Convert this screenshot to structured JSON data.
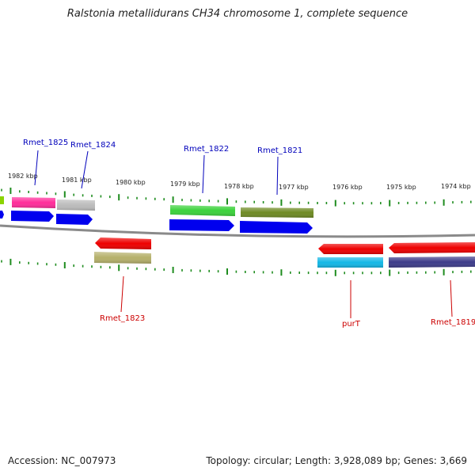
{
  "title": "Ralstonia metallidurans CH34 chromosome 1, complete sequence",
  "footer": {
    "accession": "Accession: NC_007973",
    "summary": "Topology: circular; Length: 3,928,089 bp; Genes: 3,669"
  },
  "colors": {
    "forward_label": "#0000bb",
    "reverse_label": "#cc0000",
    "tick": "#1e8c1e",
    "backbone": "#8a8a8a"
  },
  "kbp_labels": [
    "1982 kbp",
    "1981 kbp",
    "1980 kbp",
    "1979 kbp",
    "1978 kbp",
    "1977 kbp",
    "1976 kbp",
    "1975 kbp",
    "1974 kbp"
  ],
  "gene_labels": {
    "forward": [
      "Rmet_1825",
      "Rmet_1824",
      "Rmet_1822",
      "Rmet_1821"
    ],
    "reverse": [
      "Rmet_1823",
      "purT",
      "Rmet_1819"
    ]
  }
}
